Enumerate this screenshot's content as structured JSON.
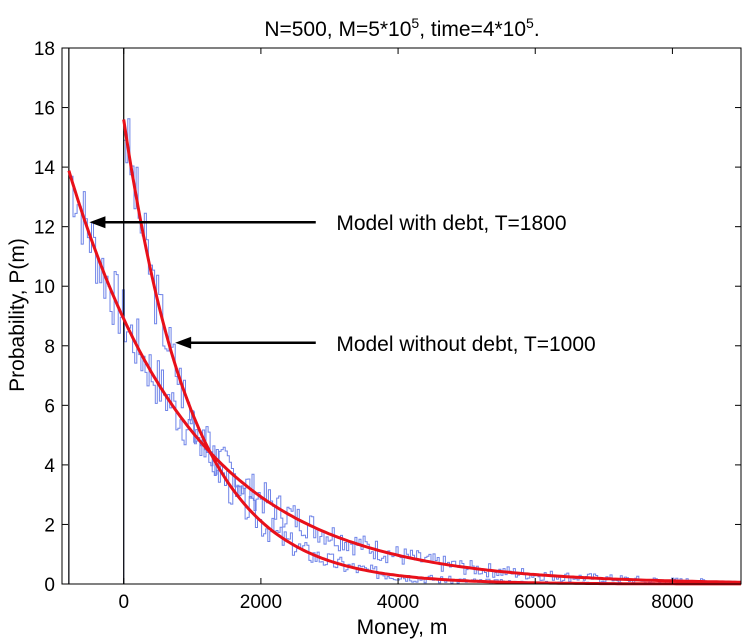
{
  "chart_data": {
    "type": "line",
    "title_parts": [
      "N=500, M=5*10",
      "5",
      ", time=4*10",
      "5",
      "."
    ],
    "xlabel": "Money, m",
    "ylabel": "Probability, P(m)",
    "xlim": [
      -900,
      9000
    ],
    "ylim": [
      0,
      18
    ],
    "xticks": [
      0,
      2000,
      4000,
      6000,
      8000
    ],
    "xtick_labels": [
      "0",
      "2000",
      "4000",
      "6000",
      "8000"
    ],
    "yticks": [
      0,
      2,
      4,
      6,
      8,
      10,
      12,
      14,
      16,
      18
    ],
    "ytick_labels": [
      "0",
      "2",
      "4",
      "6",
      "8",
      "10",
      "12",
      "14",
      "16",
      "18"
    ],
    "vertical_lines": [
      -800,
      0
    ],
    "series": [
      {
        "name": "Model with debt, T=1800",
        "kind": "exponential-fit",
        "x_start": -800,
        "x_end": 9000,
        "a": 8.9,
        "x0": 0,
        "t": 1800,
        "color": "#e8101a"
      },
      {
        "name": "Model without debt, T=1000",
        "kind": "exponential-fit",
        "x_start": 0,
        "x_end": 9000,
        "a": 15.6,
        "x0": 0,
        "t": 1000,
        "color": "#e8101a"
      },
      {
        "name": "Histogram with debt",
        "kind": "histogram",
        "x_start": -800,
        "x_end": 9000,
        "bin": 30,
        "a": 8.9,
        "x0": 0,
        "t": 1800,
        "noise": 0.35,
        "seed": 7,
        "color": "#6f84e8"
      },
      {
        "name": "Histogram without debt",
        "kind": "histogram",
        "x_start": 0,
        "x_end": 9000,
        "bin": 30,
        "a": 15.6,
        "x0": 0,
        "t": 1000,
        "noise": 0.35,
        "seed": 3,
        "color": "#6f84e8"
      }
    ],
    "annotations": [
      {
        "text": "Model with debt, T=1800",
        "arrow_tip": [
          -500,
          12.15
        ],
        "arrow_tail": [
          2800,
          12.15
        ],
        "text_x": 3100,
        "text_y": 12.15
      },
      {
        "text": "Model without debt, T=1000",
        "arrow_tip": [
          750,
          8.1
        ],
        "arrow_tail": [
          2800,
          8.1
        ],
        "text_x": 3100,
        "text_y": 8.1
      }
    ]
  }
}
